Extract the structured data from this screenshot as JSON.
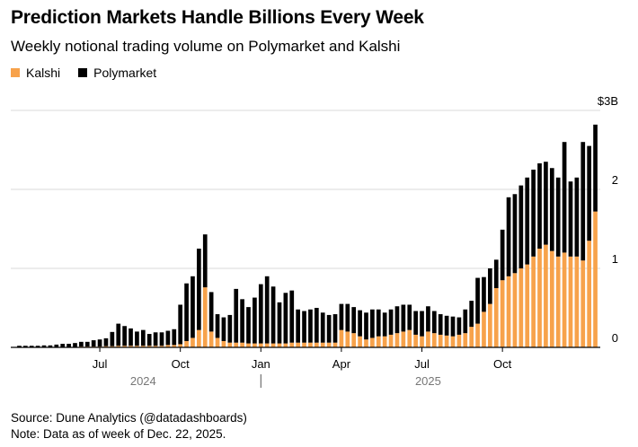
{
  "header": {
    "title": "Prediction Markets Handle Billions Every Week",
    "subtitle": "Weekly notional trading volume on Polymarket and Kalshi"
  },
  "legend": [
    {
      "label": "Kalshi",
      "color": "#f7a24b"
    },
    {
      "label": "Polymarket",
      "color": "#000000"
    }
  ],
  "footer": {
    "source": "Source: Dune Analytics (@datadashboards)",
    "note": "Note: Data as of week of Dec. 22, 2025."
  },
  "chart_data": {
    "type": "bar",
    "stacked": true,
    "title": "Prediction Markets Handle Billions Every Week",
    "subtitle": "Weekly notional trading volume on Polymarket and Kalshi",
    "unit": "$B",
    "ylim": [
      0,
      3
    ],
    "yticks": [
      {
        "value": 0,
        "label": "0"
      },
      {
        "value": 1,
        "label": "1"
      },
      {
        "value": 2,
        "label": "2"
      },
      {
        "value": 3,
        "label": "$3B"
      }
    ],
    "xticks": [
      {
        "index": 13,
        "label": "Jul"
      },
      {
        "index": 26,
        "label": "Oct"
      },
      {
        "index": 39,
        "label": "Jan"
      },
      {
        "index": 52,
        "label": "Apr"
      },
      {
        "index": 65,
        "label": "Jul"
      },
      {
        "index": 78,
        "label": "Oct"
      }
    ],
    "year_labels": [
      {
        "index": 20,
        "label": "2024"
      },
      {
        "index": 66,
        "label": "2025"
      }
    ],
    "year_divider_index": 39,
    "grid": true,
    "legend_position": "top-left",
    "series": [
      {
        "name": "Kalshi",
        "color": "#f7a24b",
        "values": [
          0.005,
          0.005,
          0.005,
          0.005,
          0.005,
          0.005,
          0.005,
          0.005,
          0.005,
          0.005,
          0.01,
          0.01,
          0.01,
          0.01,
          0.015,
          0.015,
          0.02,
          0.02,
          0.02,
          0.02,
          0.02,
          0.02,
          0.02,
          0.02,
          0.03,
          0.03,
          0.04,
          0.08,
          0.12,
          0.22,
          0.76,
          0.2,
          0.12,
          0.08,
          0.06,
          0.06,
          0.06,
          0.05,
          0.05,
          0.05,
          0.05,
          0.05,
          0.05,
          0.05,
          0.06,
          0.06,
          0.06,
          0.06,
          0.06,
          0.06,
          0.06,
          0.06,
          0.22,
          0.2,
          0.18,
          0.14,
          0.1,
          0.12,
          0.14,
          0.14,
          0.16,
          0.18,
          0.2,
          0.22,
          0.16,
          0.14,
          0.2,
          0.18,
          0.16,
          0.15,
          0.14,
          0.16,
          0.18,
          0.26,
          0.3,
          0.45,
          0.55,
          0.75,
          0.85,
          0.9,
          0.94,
          1.0,
          1.05,
          1.15,
          1.25,
          1.3,
          1.22,
          1.15,
          1.2,
          1.15,
          1.15,
          1.1,
          1.35,
          1.72
        ]
      },
      {
        "name": "Polymarket",
        "color": "#000000",
        "values": [
          0.015,
          0.015,
          0.015,
          0.015,
          0.02,
          0.02,
          0.03,
          0.04,
          0.04,
          0.05,
          0.06,
          0.06,
          0.08,
          0.09,
          0.1,
          0.18,
          0.28,
          0.25,
          0.22,
          0.18,
          0.2,
          0.15,
          0.17,
          0.17,
          0.18,
          0.2,
          0.5,
          0.73,
          0.78,
          1.03,
          0.67,
          0.5,
          0.3,
          0.3,
          0.35,
          0.68,
          0.55,
          0.46,
          0.58,
          0.75,
          0.85,
          0.72,
          0.52,
          0.64,
          0.66,
          0.42,
          0.4,
          0.42,
          0.44,
          0.38,
          0.35,
          0.36,
          0.33,
          0.35,
          0.33,
          0.33,
          0.34,
          0.36,
          0.34,
          0.3,
          0.32,
          0.34,
          0.34,
          0.32,
          0.3,
          0.32,
          0.32,
          0.28,
          0.26,
          0.25,
          0.25,
          0.22,
          0.3,
          0.33,
          0.58,
          0.44,
          0.45,
          0.36,
          0.64,
          1.0,
          1.0,
          1.05,
          1.1,
          1.1,
          1.08,
          1.05,
          1.05,
          1.0,
          1.4,
          0.95,
          1.0,
          1.5,
          1.2,
          1.1
        ]
      }
    ]
  }
}
